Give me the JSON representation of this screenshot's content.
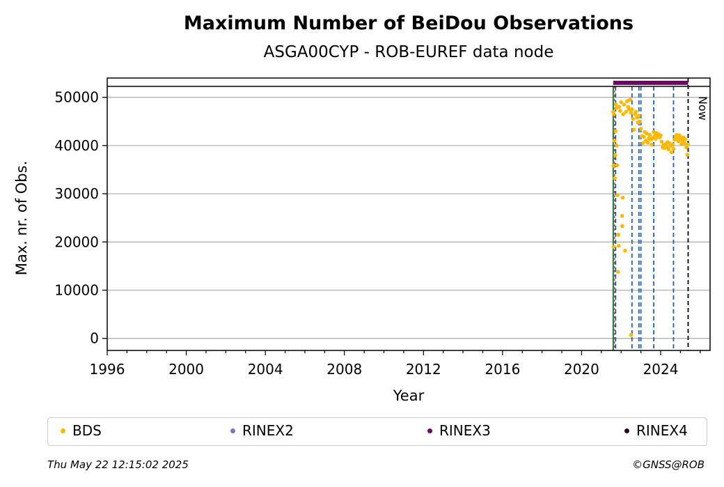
{
  "chart_data": {
    "type": "scatter",
    "title": "Maximum Number of BeiDou Observations",
    "subtitle": "ASGA00CYP - ROB-EUREF data node",
    "xlabel": "Year",
    "ylabel": "Max. nr. of Obs.",
    "xlim": [
      1996,
      2026.5
    ],
    "ylim": [
      -2500,
      54000
    ],
    "x_ticks": [
      1996,
      2000,
      2004,
      2008,
      2012,
      2016,
      2020,
      2024
    ],
    "y_ticks": [
      0,
      10000,
      20000,
      30000,
      40000,
      50000
    ],
    "grid": "horizontal",
    "legend_position": "bottom",
    "now_label": "Now",
    "now_x": 2025.39,
    "start_line_x": 2021.6,
    "equipment_change_lines_x": [
      2021.72,
      2022.55,
      2022.9,
      2023.0,
      2023.65,
      2024.65
    ],
    "rinex3_bar": {
      "x_start": 2021.6,
      "x_end": 2025.39,
      "y": 53000
    },
    "series": [
      {
        "name": "BDS",
        "color": "#FFB800",
        "points": [
          [
            2021.6,
            47000
          ],
          [
            2021.61,
            35800
          ],
          [
            2021.62,
            19000
          ],
          [
            2021.64,
            46500
          ],
          [
            2021.66,
            41000
          ],
          [
            2021.68,
            33200
          ],
          [
            2021.7,
            38000
          ],
          [
            2021.72,
            43000
          ],
          [
            2021.74,
            48500
          ],
          [
            2021.76,
            47800
          ],
          [
            2021.78,
            40000
          ],
          [
            2021.8,
            35900
          ],
          [
            2021.82,
            29700
          ],
          [
            2021.84,
            13800
          ],
          [
            2021.86,
            21500
          ],
          [
            2021.88,
            19200
          ],
          [
            2021.9,
            48000
          ],
          [
            2021.95,
            47200
          ],
          [
            2022.0,
            49000
          ],
          [
            2022.05,
            25400
          ],
          [
            2022.06,
            23300
          ],
          [
            2022.08,
            29200
          ],
          [
            2022.1,
            46500
          ],
          [
            2022.15,
            48500
          ],
          [
            2022.2,
            18200
          ],
          [
            2022.25,
            47000
          ],
          [
            2022.3,
            49200
          ],
          [
            2022.35,
            48000
          ],
          [
            2022.4,
            47500
          ],
          [
            2022.45,
            49500
          ],
          [
            2022.5,
            46800
          ],
          [
            2022.55,
            47500
          ],
          [
            2022.6,
            45500
          ],
          [
            2022.65,
            43300
          ],
          [
            2022.7,
            46500
          ],
          [
            2022.75,
            47000
          ],
          [
            2022.8,
            45800
          ],
          [
            2022.85,
            44800
          ],
          [
            2022.9,
            46200
          ],
          [
            2022.95,
            45000
          ],
          [
            2023.0,
            43500
          ],
          [
            2023.05,
            42000
          ],
          [
            2023.1,
            40500
          ],
          [
            2023.15,
            41800
          ],
          [
            2023.2,
            42800
          ],
          [
            2023.25,
            41000
          ],
          [
            2023.3,
            42500
          ],
          [
            2023.35,
            40600
          ],
          [
            2023.4,
            41500
          ],
          [
            2023.45,
            42200
          ],
          [
            2023.5,
            41200
          ],
          [
            2023.55,
            40200
          ],
          [
            2023.6,
            41600
          ],
          [
            2023.65,
            42800
          ],
          [
            2023.7,
            42000
          ],
          [
            2023.75,
            41400
          ],
          [
            2023.8,
            42600
          ],
          [
            2023.85,
            41900
          ],
          [
            2023.9,
            42300
          ],
          [
            2023.95,
            41700
          ],
          [
            2024.0,
            42100
          ],
          [
            2024.05,
            40800
          ],
          [
            2024.1,
            39600
          ],
          [
            2024.15,
            40100
          ],
          [
            2024.2,
            39500
          ],
          [
            2024.25,
            40300
          ],
          [
            2024.3,
            39800
          ],
          [
            2024.35,
            40700
          ],
          [
            2024.4,
            39200
          ],
          [
            2024.45,
            40500
          ],
          [
            2024.5,
            39900
          ],
          [
            2024.55,
            38600
          ],
          [
            2024.6,
            40200
          ],
          [
            2024.65,
            39300
          ],
          [
            2024.7,
            41200
          ],
          [
            2024.75,
            41800
          ],
          [
            2024.8,
            42200
          ],
          [
            2024.85,
            41400
          ],
          [
            2024.9,
            40900
          ],
          [
            2024.95,
            42100
          ],
          [
            2025.0,
            41600
          ],
          [
            2025.05,
            40300
          ],
          [
            2025.1,
            41000
          ],
          [
            2025.15,
            41700
          ],
          [
            2025.2,
            40500
          ],
          [
            2025.25,
            41300
          ],
          [
            2025.3,
            39600
          ],
          [
            2025.35,
            38100
          ],
          [
            2025.38,
            40200
          ],
          [
            2022.5,
            700
          ]
        ]
      },
      {
        "name": "RINEX2",
        "color": "#7B78B9",
        "points": []
      },
      {
        "name": "RINEX3",
        "color": "#6A0A5E",
        "points": []
      },
      {
        "name": "RINEX4",
        "color": "#2A0525",
        "points": []
      }
    ]
  },
  "footer": {
    "timestamp": "Thu May 22 12:15:02 2025",
    "credit": "©GNSS@ROB"
  }
}
